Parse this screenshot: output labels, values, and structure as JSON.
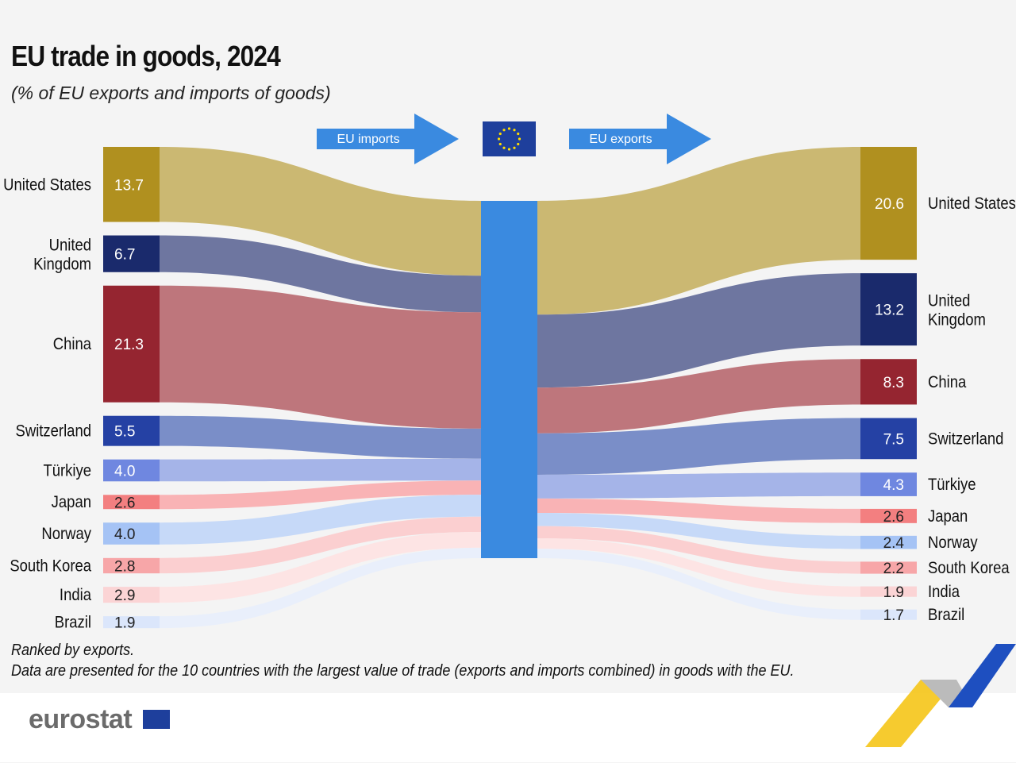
{
  "title": "EU trade in goods, 2024",
  "subtitle": "(% of EU exports and imports of goods)",
  "imports_label": "EU imports",
  "exports_label": "EU exports",
  "notes": [
    "Ranked by exports.",
    "Data are presented for the 10 countries with the largest value of trade (exports and imports combined) in goods with the EU."
  ],
  "logo": "eurostat",
  "center_color": "#3a8ae0",
  "chart_data": {
    "type": "sankey",
    "unit": "% of EU exports and imports of goods",
    "countries": [
      {
        "name": "United States",
        "imports": 13.7,
        "exports": 20.6,
        "bar_color": "#b0901f",
        "link_color": "#cbb872",
        "text_color": "#ffffff"
      },
      {
        "name": "United Kingdom",
        "imports": 6.7,
        "exports": 13.2,
        "bar_color": "#1a2a6c",
        "link_color": "#6e76a0",
        "text_color": "#ffffff"
      },
      {
        "name": "China",
        "imports": 21.3,
        "exports": 8.3,
        "bar_color": "#952530",
        "link_color": "#be767c",
        "text_color": "#ffffff"
      },
      {
        "name": "Switzerland",
        "imports": 5.5,
        "exports": 7.5,
        "bar_color": "#2541a4",
        "link_color": "#7a8ec8",
        "text_color": "#ffffff"
      },
      {
        "name": "Türkiye",
        "imports": 4.0,
        "exports": 4.3,
        "bar_color": "#6f87e0",
        "link_color": "#a5b4e8",
        "text_color": "#ffffff"
      },
      {
        "name": "Japan",
        "imports": 2.6,
        "exports": 2.6,
        "bar_color": "#f37f80",
        "link_color": "#f9b3b5",
        "text_color": "#222222"
      },
      {
        "name": "Norway",
        "imports": 4.0,
        "exports": 2.4,
        "bar_color": "#a5c3f5",
        "link_color": "#c6d9f8",
        "text_color": "#222222"
      },
      {
        "name": "South Korea",
        "imports": 2.8,
        "exports": 2.2,
        "bar_color": "#f7a6a8",
        "link_color": "#fbcfd0",
        "text_color": "#222222"
      },
      {
        "name": "India",
        "imports": 2.9,
        "exports": 1.9,
        "bar_color": "#fbd4d5",
        "link_color": "#fde4e4",
        "text_color": "#222222"
      },
      {
        "name": "Brazil",
        "imports": 1.9,
        "exports": 1.7,
        "bar_color": "#dbe6fb",
        "link_color": "#e9effb",
        "text_color": "#222222"
      }
    ]
  }
}
